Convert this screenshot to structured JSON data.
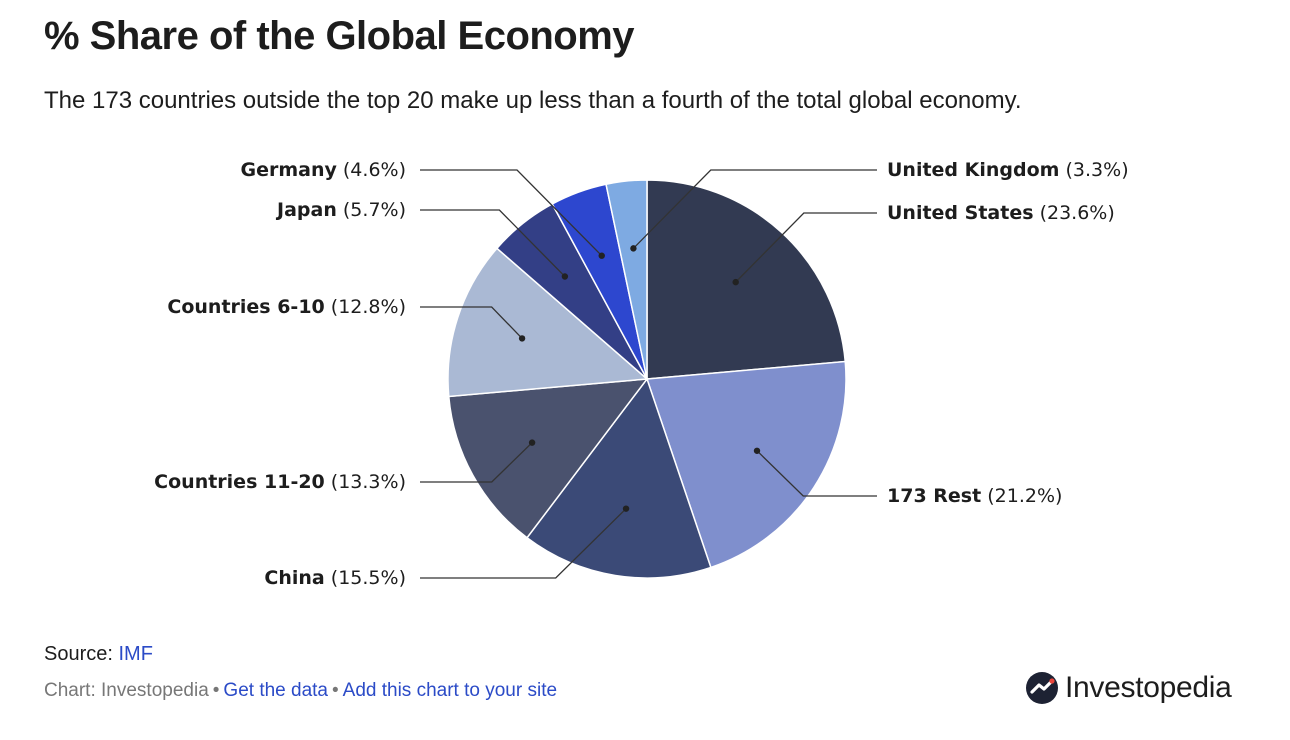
{
  "header": {
    "title": "% Share of the Global Economy",
    "subtitle": "The 173 countries outside the top 20 make up less than a fourth of the total global economy."
  },
  "chart_data": {
    "type": "pie",
    "title": "% Share of the Global Economy",
    "slices": [
      {
        "label": "United States",
        "value_text": "(23.6%)",
        "value": 23.6,
        "color": "#323a52"
      },
      {
        "label": "173 Rest",
        "value_text": "(21.2%)",
        "value": 21.2,
        "color": "#7f8fcd"
      },
      {
        "label": "China",
        "value_text": "(15.5%)",
        "value": 15.5,
        "color": "#3b4a77"
      },
      {
        "label": "Countries 11-20",
        "value_text": "(13.3%)",
        "value": 13.3,
        "color": "#4a526e"
      },
      {
        "label": "Countries 6-10",
        "value_text": "(12.8%)",
        "value": 12.8,
        "color": "#aab9d4"
      },
      {
        "label": "Japan",
        "value_text": "(5.7%)",
        "value": 5.7,
        "color": "#333f86"
      },
      {
        "label": "Germany",
        "value_text": "(4.6%)",
        "value": 4.6,
        "color": "#2d47cf"
      },
      {
        "label": "United Kingdom",
        "value_text": "(3.3%)",
        "value": 3.3,
        "color": "#7eaae2"
      }
    ]
  },
  "footer": {
    "source_label": "Source:",
    "source_link": "IMF",
    "chart_credit": "Chart: Investopedia",
    "separator": "•",
    "get_data_link": "Get the data",
    "add_chart_link": "Add this chart to your site",
    "brand": "Investopedia"
  }
}
